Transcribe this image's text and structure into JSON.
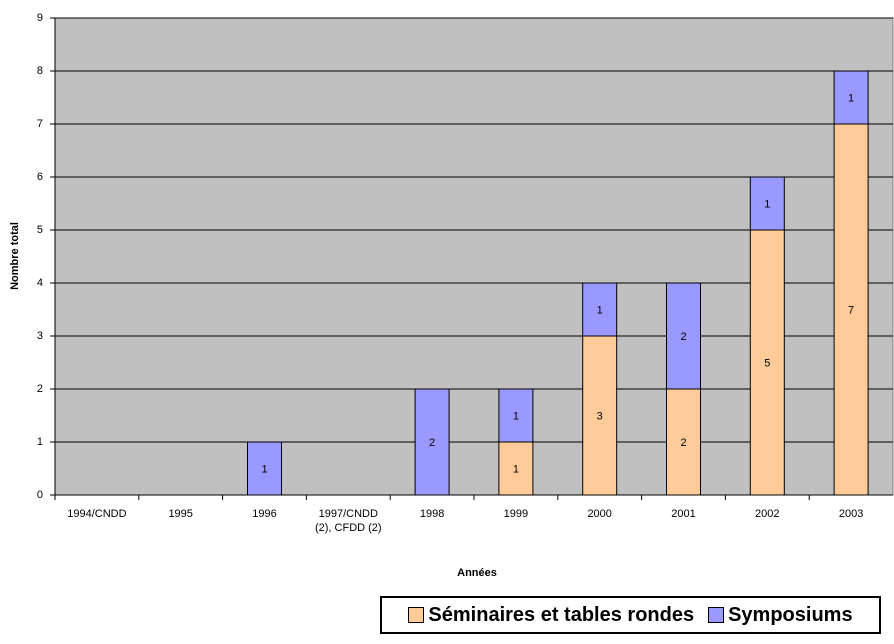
{
  "chart_data": {
    "type": "stacked_bar",
    "x_label": "Années",
    "y_label": "Nombre total",
    "categories": [
      "1994/CNDD",
      "1995",
      "1996",
      "1997/CNDD (2), CFDD (2)",
      "1998",
      "1999",
      "2000",
      "2001",
      "2002",
      "2003"
    ],
    "series": [
      {
        "name": "Séminaires et tables rondes",
        "color": "#ffcc99",
        "values": [
          0,
          0,
          0,
          0,
          0,
          1,
          3,
          2,
          5,
          7
        ]
      },
      {
        "name": "Symposiums",
        "color": "#9999ff",
        "values": [
          0,
          0,
          1,
          0,
          2,
          1,
          1,
          2,
          1,
          1
        ]
      }
    ],
    "ylim": [
      0,
      9
    ],
    "yticks": [
      0,
      1,
      2,
      3,
      4,
      5,
      6,
      7,
      8,
      9
    ],
    "grid": true,
    "background": "#c0c0c0"
  }
}
